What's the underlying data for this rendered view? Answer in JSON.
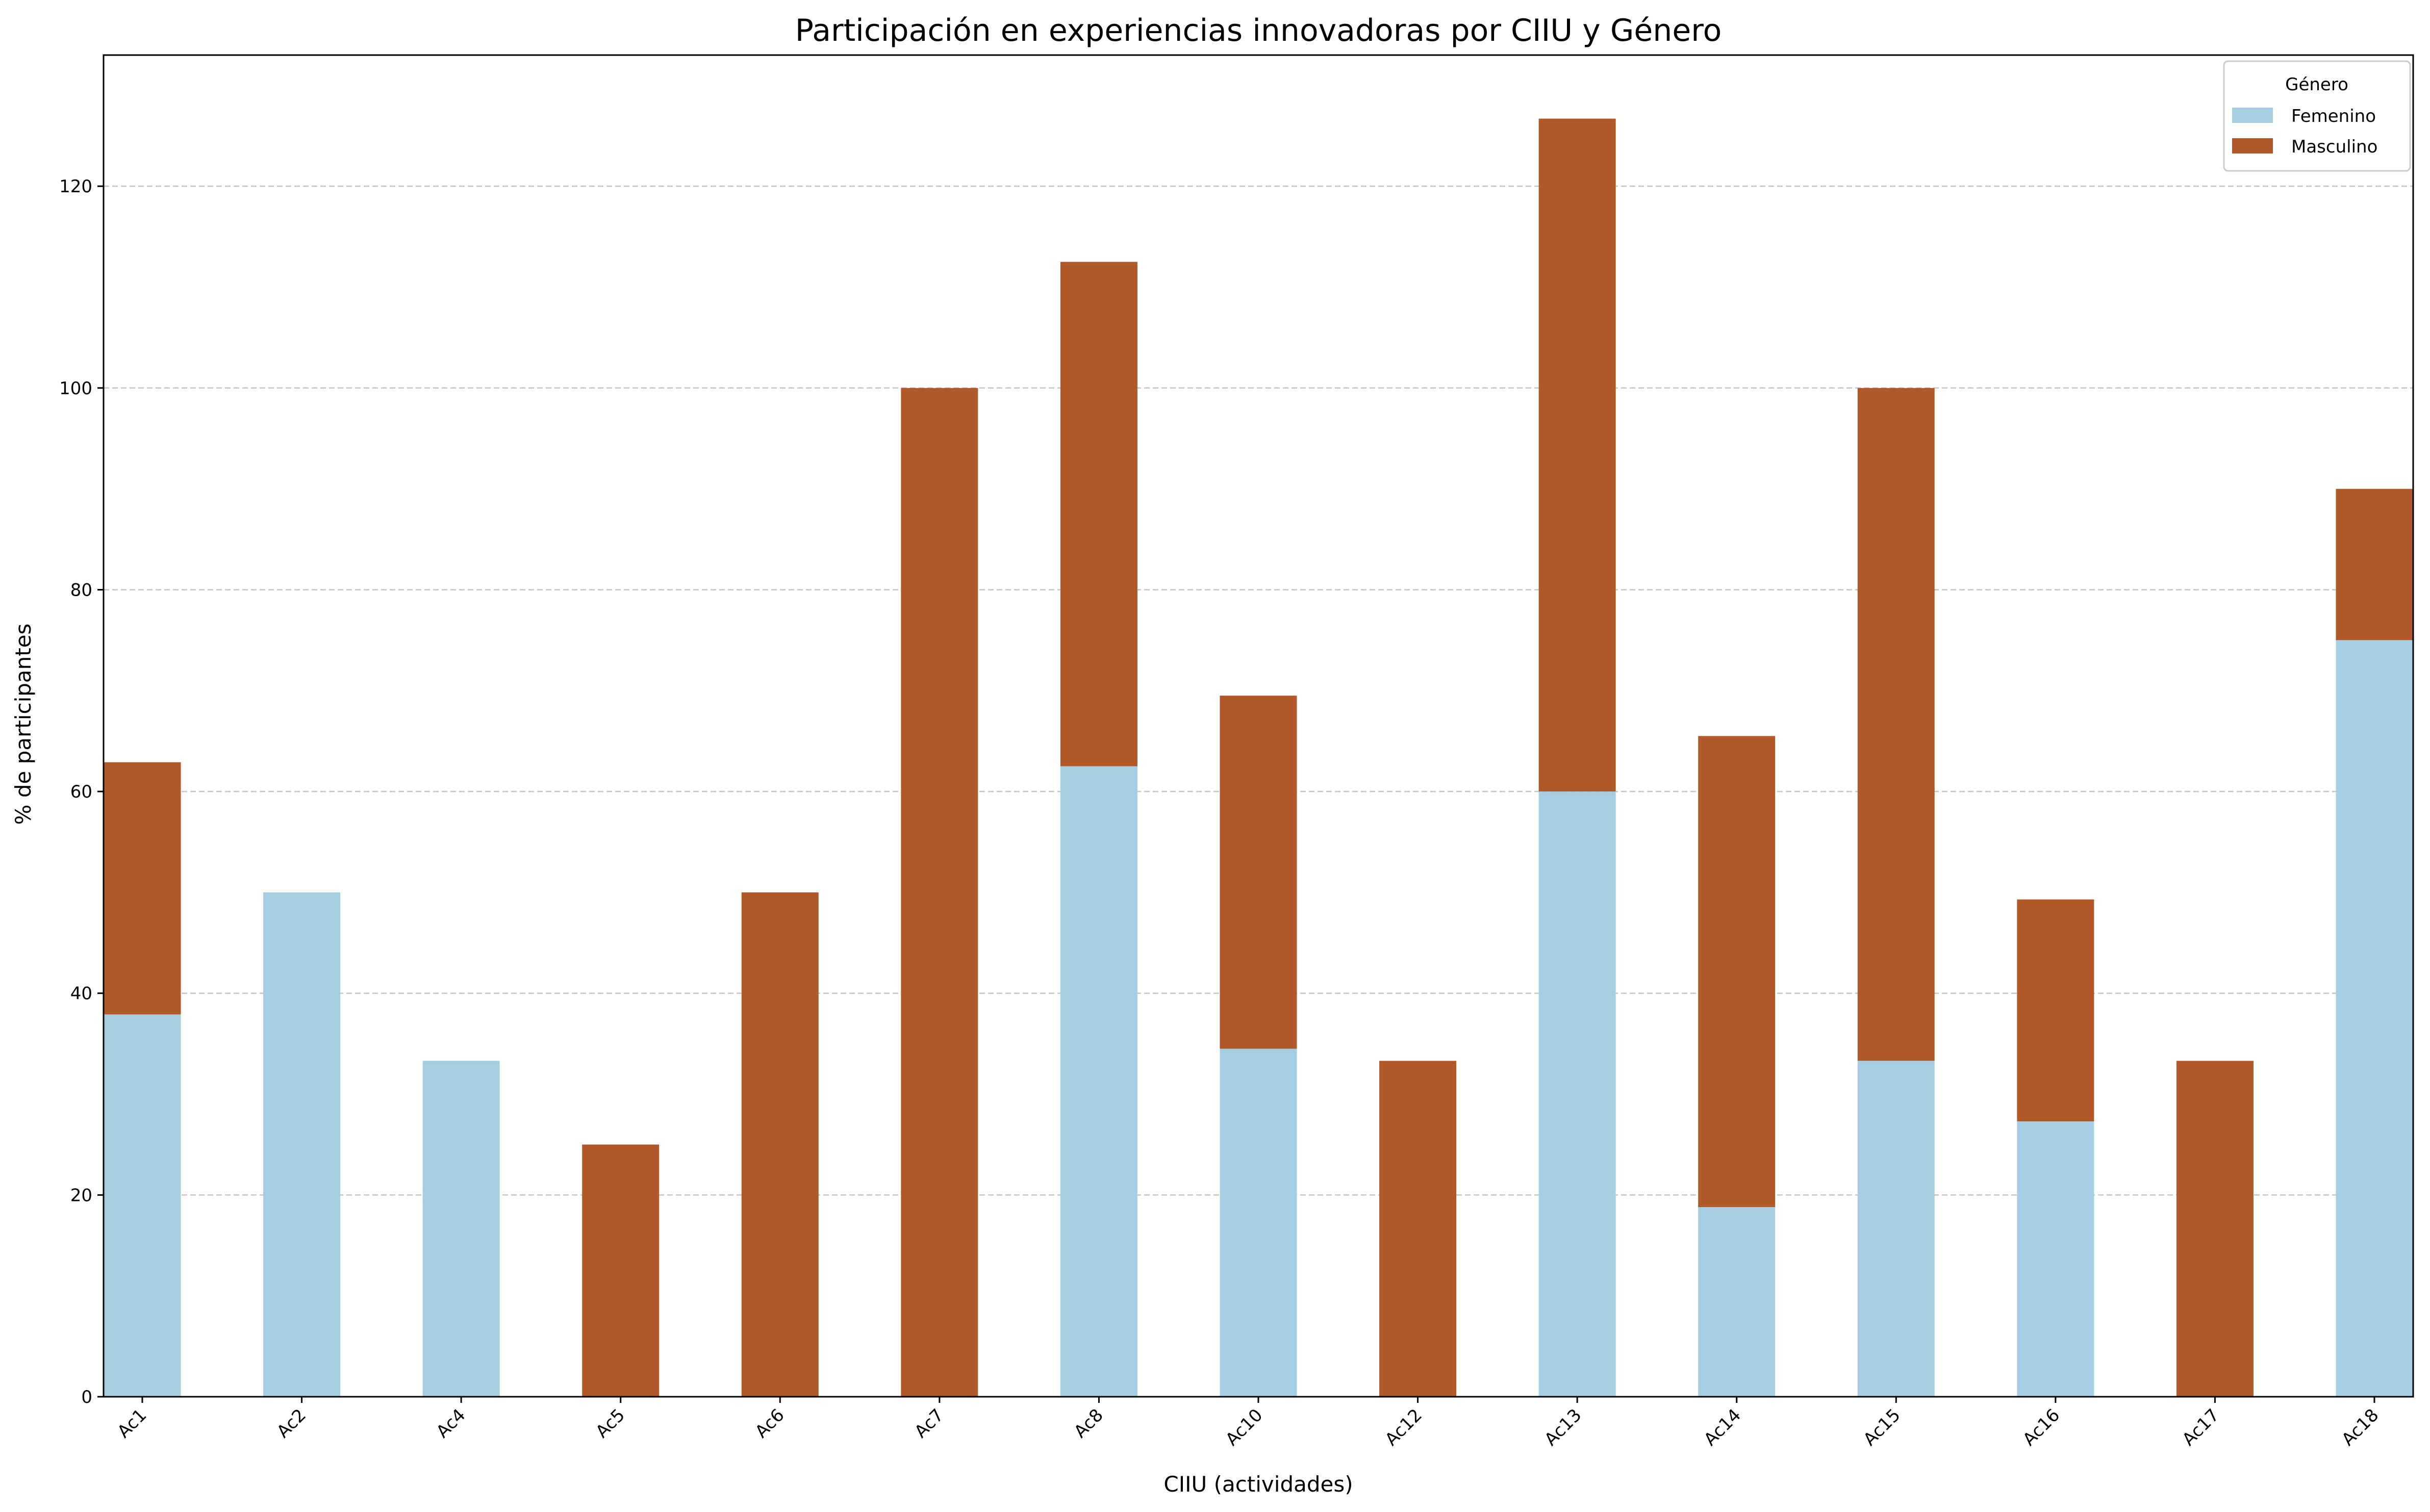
{
  "chart_data": {
    "type": "bar",
    "stacked": true,
    "title": "Participación en experiencias innovadoras por CIIU y Género",
    "xlabel": "CIIU (actividades)",
    "ylabel": "% de participantes",
    "ylim": [
      0,
      133
    ],
    "yticks": [
      0,
      20,
      40,
      60,
      80,
      100,
      120
    ],
    "grid": "y-dashed",
    "categories": [
      "Ac1",
      "Ac2",
      "Ac4",
      "Ac5",
      "Ac6",
      "Ac7",
      "Ac8",
      "Ac10",
      "Ac12",
      "Ac13",
      "Ac14",
      "Ac15",
      "Ac16",
      "Ac17",
      "Ac18"
    ],
    "series": [
      {
        "name": "Femenino",
        "color": "#a6cee3",
        "values": [
          37.9,
          50,
          33.3,
          0,
          0,
          0,
          62.5,
          34.5,
          0,
          60,
          18.8,
          33.3,
          27.3,
          0,
          75
        ]
      },
      {
        "name": "Masculino",
        "color": "#b15928",
        "values": [
          25,
          0,
          0,
          25,
          50,
          100,
          50,
          35,
          33.3,
          66.7,
          46.7,
          66.7,
          22,
          33.3,
          15
        ]
      }
    ],
    "legend": {
      "title": "Género",
      "position": "top-right"
    }
  }
}
